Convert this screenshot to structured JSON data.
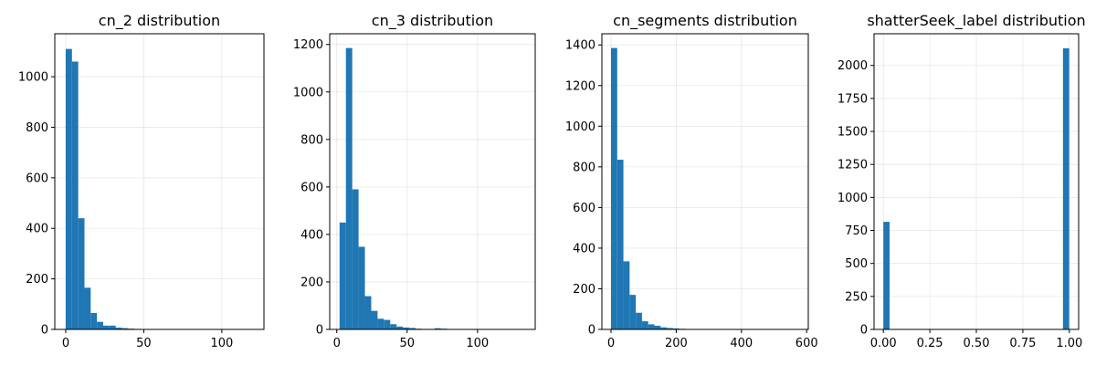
{
  "chart_data": [
    {
      "type": "bar",
      "title": "cn_2 distribution",
      "xlabel": "",
      "ylabel": "",
      "xlim": [
        -7,
        127
      ],
      "ylim": [
        0,
        1170
      ],
      "bin_start": 0,
      "bin_width": 4,
      "values": [
        1110,
        1060,
        440,
        165,
        65,
        30,
        15,
        15,
        7,
        5,
        3,
        2,
        1,
        1,
        1,
        1,
        1,
        0,
        0,
        0,
        0,
        0,
        0,
        0,
        0,
        0,
        0,
        0,
        0,
        1
      ],
      "xticks": [
        0,
        50,
        100
      ],
      "yticks": [
        0,
        200,
        400,
        600,
        800,
        1000
      ],
      "grid": true,
      "color": "#1f77b4"
    },
    {
      "type": "bar",
      "title": "cn_3 distribution",
      "xlabel": "",
      "ylabel": "",
      "xlim": [
        -5,
        141
      ],
      "ylim": [
        0,
        1245
      ],
      "bin_start": 2,
      "bin_width": 4.5,
      "values": [
        450,
        1185,
        590,
        348,
        140,
        78,
        45,
        40,
        22,
        12,
        8,
        6,
        3,
        2,
        2,
        5,
        3,
        1,
        1,
        1,
        0,
        0,
        0,
        0,
        0,
        0,
        0,
        0,
        1,
        1
      ],
      "xticks": [
        0,
        50,
        100
      ],
      "yticks": [
        0,
        200,
        400,
        600,
        800,
        1000,
        1200
      ],
      "grid": true,
      "color": "#1f77b4"
    },
    {
      "type": "bar",
      "title": "cn_segments distribution",
      "xlabel": "",
      "ylabel": "",
      "xlim": [
        -28,
        605
      ],
      "ylim": [
        0,
        1455
      ],
      "bin_start": 0,
      "bin_width": 19,
      "values": [
        1385,
        835,
        335,
        170,
        82,
        40,
        25,
        18,
        10,
        7,
        5,
        3,
        2,
        2,
        1,
        1,
        1,
        0,
        0,
        0,
        0,
        0,
        0,
        0,
        0,
        0,
        0,
        0,
        0,
        1
      ],
      "xticks": [
        0,
        200,
        400,
        600
      ],
      "yticks": [
        0,
        200,
        400,
        600,
        800,
        1000,
        1200,
        1400
      ],
      "grid": true,
      "color": "#1f77b4"
    },
    {
      "type": "bar",
      "title": "shatterSeek_label distribution",
      "xlabel": "",
      "ylabel": "",
      "xlim": [
        -0.05,
        1.05
      ],
      "ylim": [
        0,
        2240
      ],
      "bin_start": 0,
      "bin_width": 0.0333,
      "values": [
        815,
        0,
        0,
        0,
        0,
        0,
        0,
        0,
        0,
        0,
        0,
        0,
        0,
        0,
        0,
        0,
        0,
        0,
        0,
        0,
        0,
        0,
        0,
        0,
        0,
        0,
        0,
        0,
        0,
        2130
      ],
      "xticks": [
        0.0,
        0.25,
        0.5,
        0.75,
        1.0
      ],
      "xtick_labels": [
        "0.00",
        "0.25",
        "0.50",
        "0.75",
        "1.00"
      ],
      "yticks": [
        0,
        250,
        500,
        750,
        1000,
        1250,
        1500,
        1750,
        2000
      ],
      "grid": true,
      "color": "#1f77b4"
    }
  ]
}
